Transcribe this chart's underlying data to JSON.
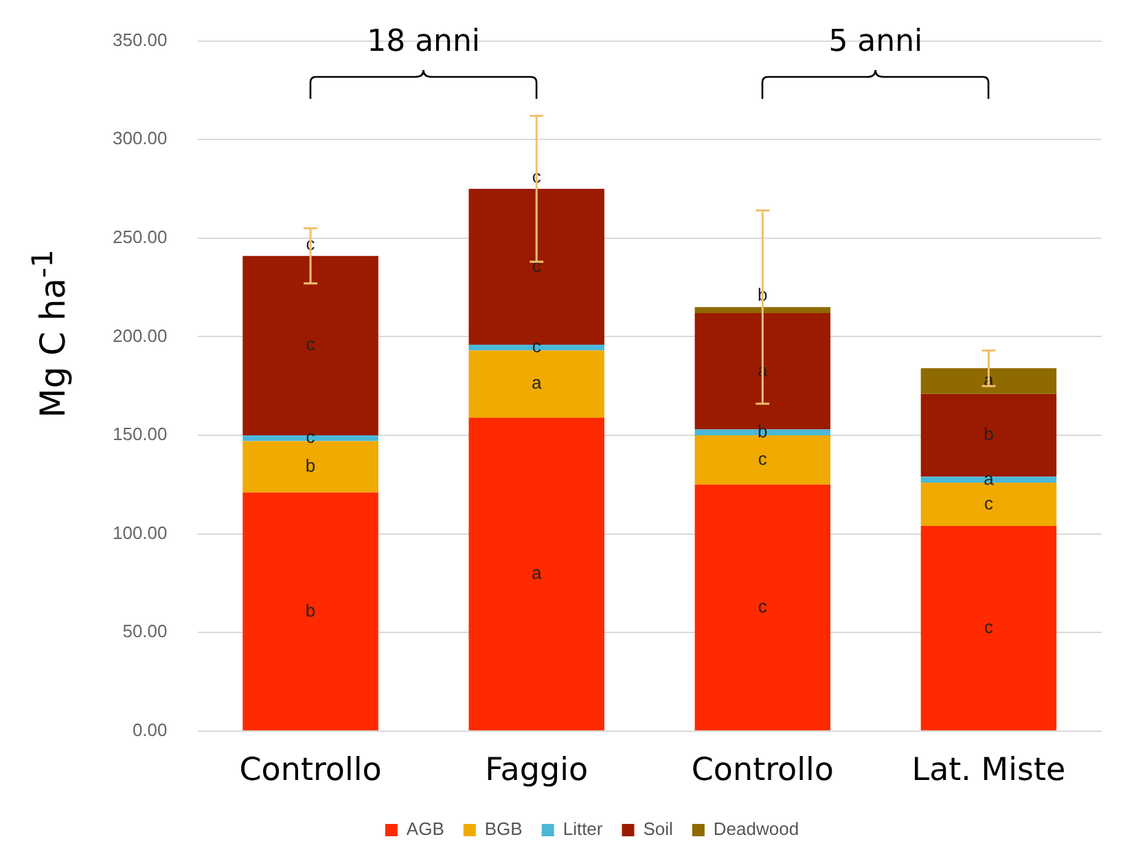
{
  "chart_data": {
    "type": "bar",
    "stacked": true,
    "ylabel": "Mg C ha$^{-1}$",
    "categories": [
      "Controllo",
      "Faggio",
      "Controllo",
      "Lat. Miste"
    ],
    "series": [
      {
        "name": "AGB",
        "color": "#ff2a00",
        "values": [
          121,
          159,
          125,
          104
        ],
        "value_labels": [
          "b",
          "a",
          "c",
          "c"
        ]
      },
      {
        "name": "BGB",
        "color": "#f0aa00",
        "values": [
          26,
          34,
          25,
          22
        ],
        "value_labels": [
          "b",
          "a",
          "c",
          "c"
        ]
      },
      {
        "name": "Litter",
        "color": "#4bb8d8",
        "values": [
          3,
          3,
          3,
          3
        ],
        "value_labels": [
          "c",
          "c",
          "b",
          "a"
        ]
      },
      {
        "name": "Soil",
        "color": "#9b1b00",
        "values": [
          91,
          79,
          59,
          42
        ],
        "value_labels": [
          "c",
          "c",
          "a",
          "b"
        ],
        "errors": [
          14,
          37,
          null,
          null
        ]
      },
      {
        "name": "Deadwood",
        "color": "#8f6a00",
        "values": [
          0,
          0,
          3,
          13
        ],
        "value_labels": [
          "c",
          "c",
          "b",
          "a"
        ],
        "errors": [
          null,
          null,
          49,
          9
        ]
      }
    ],
    "ylim": [
      0,
      350
    ],
    "yticks": [
      {
        "value": 0,
        "label": "0.00"
      },
      {
        "value": 50,
        "label": "50.00"
      },
      {
        "value": 100,
        "label": "100.00"
      },
      {
        "value": 150,
        "label": "150.00"
      },
      {
        "value": 200,
        "label": "200.00"
      },
      {
        "value": 250,
        "label": "250.00"
      },
      {
        "value": 300,
        "label": "300.00"
      },
      {
        "value": 350,
        "label": "350.00"
      }
    ],
    "grid": "y",
    "legend": "bottom",
    "annotations": [
      "18 anni",
      "5 anni"
    ]
  }
}
